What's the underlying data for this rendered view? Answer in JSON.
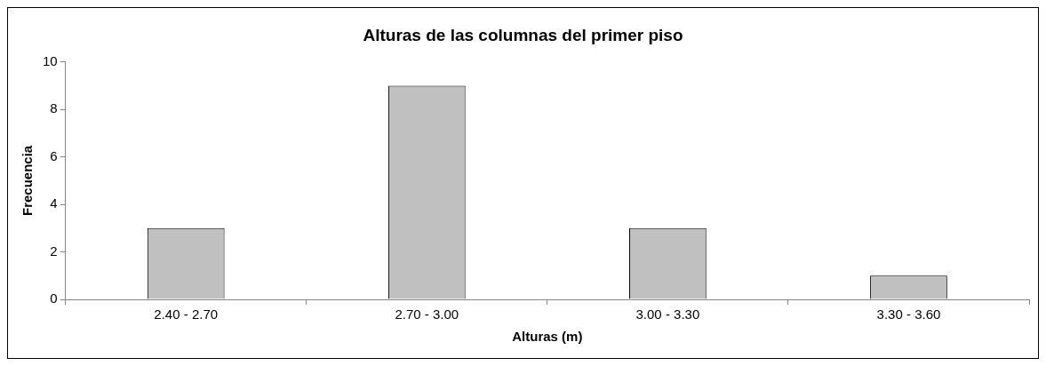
{
  "chart_data": {
    "type": "bar",
    "title": "Alturas de las columnas del primer piso",
    "xlabel": "Alturas (m)",
    "ylabel": "Frecuencia",
    "categories": [
      "2.40 - 2.70",
      "2.70 - 3.00",
      "3.00 - 3.30",
      "3.30 - 3.60"
    ],
    "values": [
      3,
      9,
      3,
      1
    ],
    "color": "#c0c0c0",
    "ylim": [
      0,
      10
    ],
    "yticks": [
      0,
      2,
      4,
      6,
      8,
      10
    ]
  }
}
